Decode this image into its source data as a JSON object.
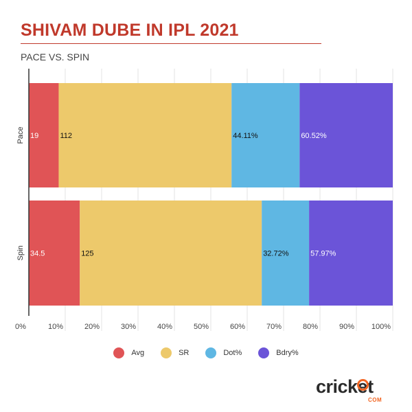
{
  "header": {
    "title": "SHIVAM DUBE IN IPL 2021",
    "subtitle": "PACE VS. SPIN"
  },
  "chart_data": {
    "type": "bar",
    "orientation": "horizontal",
    "stacked": true,
    "normalized": true,
    "categories": [
      "Pace",
      "Spin"
    ],
    "series": [
      {
        "name": "Avg",
        "color": "#e05456",
        "raw_labels": [
          "19",
          "34.5"
        ],
        "shares": [
          8.2,
          14.0
        ]
      },
      {
        "name": "SR",
        "color": "#edc96b",
        "raw_labels": [
          "112",
          "125"
        ],
        "shares": [
          47.5,
          50.0
        ]
      },
      {
        "name": "Dot%",
        "color": "#5fb7e3",
        "raw_labels": [
          "44.11%",
          "32.72%"
        ],
        "shares": [
          18.7,
          13.0
        ]
      },
      {
        "name": "Bdry%",
        "color": "#6b54d8",
        "raw_labels": [
          "60.52%",
          "57.97%"
        ],
        "shares": [
          25.6,
          23.0
        ]
      }
    ],
    "x_ticks": [
      "0%",
      "10%",
      "20%",
      "30%",
      "40%",
      "50%",
      "60%",
      "70%",
      "80%",
      "90%",
      "100%"
    ],
    "xlim": [
      0,
      100
    ],
    "grid": "vertical",
    "legend_position": "bottom"
  },
  "logo": {
    "word": "cricket",
    "suffix": "COM"
  }
}
